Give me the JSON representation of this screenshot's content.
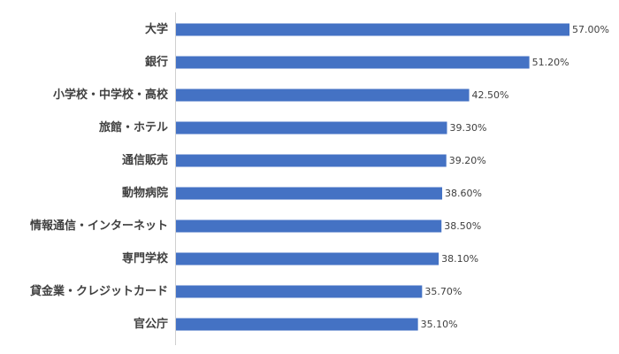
{
  "colors": {
    "bar": "#4472c4",
    "axis": "#d0d0d0",
    "text": "#404040",
    "background": "#ffffff"
  },
  "chart_data": {
    "type": "bar",
    "orientation": "horizontal",
    "title": "",
    "xlabel": "",
    "ylabel": "",
    "xlim": [
      0,
      57
    ],
    "grid": false,
    "legend": "none",
    "categories": [
      "大学",
      "銀行",
      "小学校・中学校・高校",
      "旅館・ホテル",
      "通信販売",
      "動物病院",
      "情報通信・インターネット",
      "専門学校",
      "貸金業・クレジットカード",
      "官公庁"
    ],
    "values": [
      57.0,
      51.2,
      42.5,
      39.3,
      39.2,
      38.6,
      38.5,
      38.1,
      35.7,
      35.1
    ],
    "value_labels": [
      "57.00%",
      "51.20%",
      "42.50%",
      "39.30%",
      "39.20%",
      "38.60%",
      "38.50%",
      "38.10%",
      "35.70%",
      "35.10%"
    ]
  }
}
